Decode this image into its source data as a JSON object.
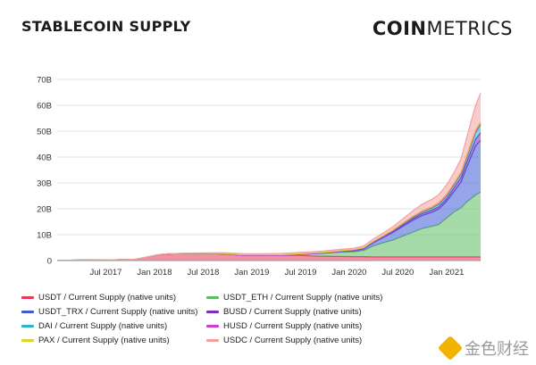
{
  "header": {
    "title": "STABLECOIN SUPPLY",
    "brand_bold": "COIN",
    "brand_light": "METRICS"
  },
  "watermark": {
    "text": "金色财经"
  },
  "chart_data": {
    "type": "area",
    "stacked": true,
    "title": "STABLECOIN SUPPLY",
    "x_ticks": [
      "Jul 2017",
      "Jan 2018",
      "Jul 2018",
      "Jan 2019",
      "Jul 2019",
      "Jan 2020",
      "Jul 2020",
      "Jan 2021"
    ],
    "x": [
      2017.0,
      2017.4,
      2017.6,
      2017.8,
      2017.92,
      2018.05,
      2018.15,
      2018.3,
      2018.5,
      2018.7,
      2018.8,
      2018.92,
      2019.1,
      2019.3,
      2019.5,
      2019.6,
      2019.75,
      2019.9,
      2020.05,
      2020.15,
      2020.25,
      2020.35,
      2020.45,
      2020.55,
      2020.65,
      2020.75,
      2020.85,
      2020.92,
      2021.0,
      2021.08,
      2021.15,
      2021.2,
      2021.25,
      2021.3,
      2021.35
    ],
    "ylim": [
      0,
      80
    ],
    "y_ticks": [
      0,
      10,
      20,
      30,
      40,
      50,
      60,
      70
    ],
    "y_tick_labels": [
      "0",
      "10B",
      "20B",
      "30B",
      "40B",
      "50B",
      "60B",
      "70B"
    ],
    "series": [
      {
        "name": "USDT / Current Supply (native units)",
        "color": "#e8365d",
        "values": [
          0.1,
          0.2,
          0.3,
          0.5,
          1.3,
          2.3,
          2.6,
          2.7,
          2.7,
          2.6,
          2.3,
          2.0,
          2.0,
          2.0,
          2.0,
          1.8,
          1.7,
          1.6,
          1.5,
          1.5,
          1.4,
          1.4,
          1.4,
          1.4,
          1.4,
          1.4,
          1.4,
          1.4,
          1.4,
          1.4,
          1.4,
          1.4,
          1.4,
          1.4,
          1.4
        ]
      },
      {
        "name": "USDT_ETH / Current Supply (native units)",
        "color": "#5dbb63",
        "values": [
          0,
          0,
          0,
          0,
          0,
          0,
          0,
          0,
          0,
          0,
          0,
          0,
          0,
          0,
          0.4,
          0.8,
          1.2,
          1.6,
          1.9,
          2.4,
          4.3,
          5.5,
          6.5,
          8.0,
          9.5,
          11.0,
          11.8,
          12.5,
          15.0,
          17.5,
          19.0,
          21.0,
          22.5,
          24.0,
          25.0
        ]
      },
      {
        "name": "USDT_TRX / Current Supply (native units)",
        "color": "#3f5bd6",
        "values": [
          0,
          0,
          0,
          0,
          0,
          0,
          0,
          0,
          0,
          0,
          0,
          0,
          0,
          0,
          0,
          0,
          0,
          0.2,
          0.4,
          0.6,
          1.2,
          2.0,
          3.0,
          3.8,
          4.6,
          5.0,
          5.5,
          6.0,
          6.5,
          8.0,
          10.0,
          13.0,
          16.0,
          19.0,
          20.0
        ]
      },
      {
        "name": "BUSD / Current Supply (native units)",
        "color": "#7b2fbe",
        "values": [
          0,
          0,
          0,
          0,
          0,
          0,
          0,
          0,
          0,
          0,
          0,
          0,
          0,
          0,
          0,
          0,
          0.1,
          0.1,
          0.2,
          0.2,
          0.2,
          0.3,
          0.4,
          0.5,
          0.6,
          0.7,
          0.8,
          0.9,
          1.0,
          1.4,
          1.7,
          2.0,
          2.3,
          2.6,
          3.0
        ]
      },
      {
        "name": "DAI / Current Supply (native units)",
        "color": "#2bb5c9",
        "values": [
          0,
          0,
          0,
          0,
          0.05,
          0.05,
          0.05,
          0.05,
          0.05,
          0.05,
          0.05,
          0.05,
          0.05,
          0.05,
          0.05,
          0.05,
          0.05,
          0.05,
          0.05,
          0.1,
          0.1,
          0.1,
          0.2,
          0.3,
          0.4,
          0.6,
          0.8,
          0.9,
          1.0,
          1.1,
          1.3,
          1.5,
          2.0,
          2.5,
          3.0
        ]
      },
      {
        "name": "HUSD / Current Supply (native units)",
        "color": "#d23ad6",
        "values": [
          0,
          0,
          0,
          0,
          0,
          0,
          0,
          0,
          0,
          0,
          0,
          0,
          0,
          0,
          0,
          0,
          0,
          0.05,
          0.05,
          0.05,
          0.1,
          0.1,
          0.1,
          0.2,
          0.2,
          0.2,
          0.2,
          0.3,
          0.3,
          0.3,
          0.4,
          0.5,
          0.5,
          0.5,
          0.5
        ]
      },
      {
        "name": "PAX / Current Supply (native units)",
        "color": "#d6d62e",
        "values": [
          0,
          0,
          0,
          0,
          0,
          0,
          0,
          0,
          0.05,
          0.1,
          0.15,
          0.2,
          0.2,
          0.2,
          0.2,
          0.2,
          0.2,
          0.2,
          0.2,
          0.2,
          0.3,
          0.3,
          0.3,
          0.4,
          0.4,
          0.4,
          0.4,
          0.5,
          0.5,
          0.5,
          0.6,
          0.6,
          0.7,
          0.7,
          0.8
        ]
      },
      {
        "name": "USDC / Current Supply (native units)",
        "color": "#f4a09e",
        "values": [
          0,
          0,
          0,
          0,
          0,
          0,
          0,
          0.1,
          0.2,
          0.3,
          0.4,
          0.4,
          0.4,
          0.5,
          0.5,
          0.5,
          0.5,
          0.5,
          0.5,
          0.6,
          0.8,
          1.0,
          1.2,
          1.5,
          2.0,
          2.5,
          2.8,
          3.0,
          3.5,
          4.0,
          5.0,
          6.5,
          8.0,
          9.5,
          11.0
        ]
      }
    ]
  }
}
